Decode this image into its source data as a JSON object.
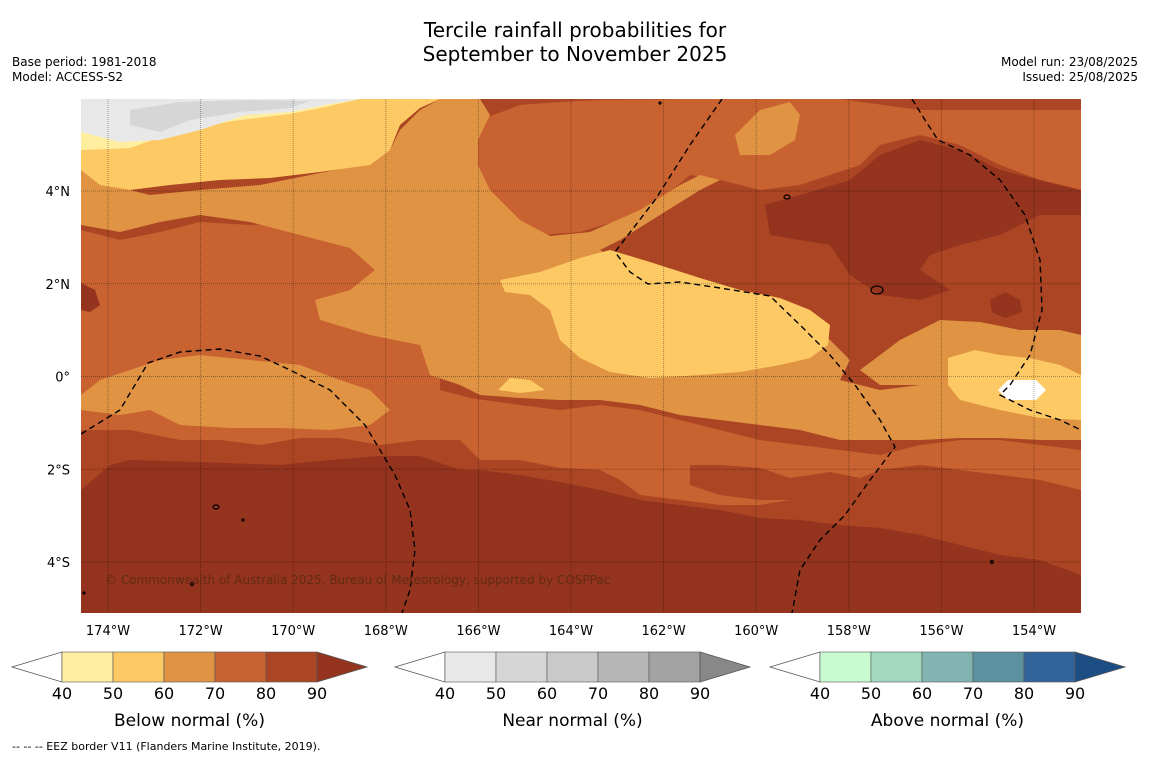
{
  "header": {
    "title_line1": "Tercile rainfall probabilities for",
    "title_line2": "September to November 2025",
    "base_period": "Base period: 1981-2018",
    "model": "Model: ACCESS-S2",
    "model_run": "Model run: 23/08/2025",
    "issued": "Issued: 25/08/2025"
  },
  "map": {
    "copyright": "© Commonwealth of Australia 2025, Bureau of Meteorology, supported by COSPPac",
    "lon_labels": [
      "174°W",
      "172°W",
      "170°W",
      "168°W",
      "166°W",
      "164°W",
      "162°W",
      "160°W",
      "158°W",
      "156°W",
      "154°W"
    ],
    "lat_labels": [
      "4°N",
      "2°N",
      "0°",
      "2°S",
      "4°S"
    ],
    "icons": [
      "eez-border-line"
    ]
  },
  "colorbars": [
    {
      "label": "Below normal (%)",
      "ticks": [
        "40",
        "50",
        "60",
        "70",
        "80",
        "90"
      ],
      "colors": [
        "#ffeea0",
        "#fdc964",
        "#df9343",
        "#c86230",
        "#ab4523",
        "#94331e"
      ]
    },
    {
      "label": "Near normal (%)",
      "ticks": [
        "40",
        "50",
        "60",
        "70",
        "80",
        "90"
      ],
      "colors": [
        "#e8e8e8",
        "#d6d6d6",
        "#c9c9c9",
        "#b7b7b7",
        "#a3a3a3",
        "#888888"
      ]
    },
    {
      "label": "Above normal (%)",
      "ticks": [
        "40",
        "50",
        "60",
        "70",
        "80",
        "90"
      ],
      "colors": [
        "#c8fcd0",
        "#a2d9c0",
        "#82b5b2",
        "#5c91a0",
        "#31659a",
        "#1c4d83"
      ]
    }
  ],
  "footer": {
    "legend": "--  --  -- EEZ border V11 (Flanders Marine Institute, 2019)."
  }
}
